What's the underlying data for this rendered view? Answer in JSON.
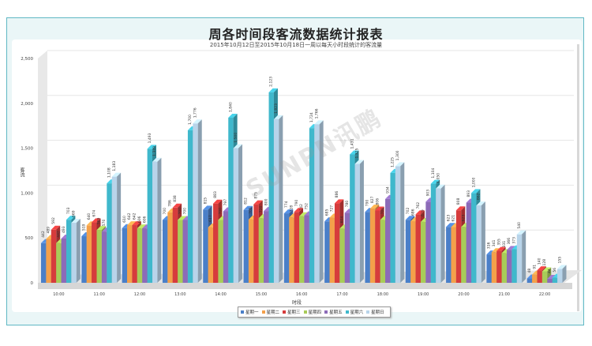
{
  "header": {
    "title": "周各时间段客流数据统计报表",
    "subtitle": "2015年10月12日至2015年10月18日一周以每天小时段统计的客流量"
  },
  "watermark": "SUNPN讯鹏",
  "colors": {
    "frame_border": "#5fb8c4",
    "frame_bg": "#eaf6f7",
    "series": [
      "#4a7fc8",
      "#f4a04a",
      "#d63c3c",
      "#a8cc58",
      "#8c6bb8",
      "#3fb8cc",
      "#b8d4ea"
    ]
  },
  "chart_data": {
    "type": "bar",
    "title": "周各时间段客流数据统计报表",
    "subtitle": "2015年10月12日至2015年10月18日一周以每天小时段统计的客流量",
    "xlabel": "时段",
    "ylabel": "客流",
    "ylim": [
      0,
      2500
    ],
    "yticks": [
      "0",
      "500",
      "1,000",
      "1,500",
      "2,000",
      "2,500"
    ],
    "grid": true,
    "legend_position": "bottom",
    "style": "3d-clustered",
    "categories": [
      "10:00",
      "11:00",
      "12:00",
      "13:00",
      "14:00",
      "15:00",
      "16:00",
      "17:00",
      "18:00",
      "19:00",
      "20:00",
      "21:00",
      "22:00"
    ],
    "series": [
      {
        "name": "星期一",
        "values": [
          442,
          519,
          610,
          700,
          815,
          812,
          774,
          685,
          790,
          702,
          623,
          316,
          48
        ]
      },
      {
        "name": "星期二",
        "values": [
          489,
          640,
          642,
          786,
          617,
          705,
          728,
          727,
          827,
          686,
          621,
          341,
          91
        ]
      },
      {
        "name": "星期三",
        "values": [
          592,
          674,
          642,
          838,
          883,
          875,
          790,
          886,
          806,
          762,
          808,
          355,
          140
        ]
      },
      {
        "name": "星期四",
        "values": [
          442,
          589,
          606,
          700,
          700,
          720,
          742,
          604,
          701,
          679,
          623,
          331,
          128
        ]
      },
      {
        "name": "星期五",
        "values": [
          493,
          570,
          606,
          700,
          797,
          800,
          752,
          780,
          934,
          903,
          893,
          366,
          44
        ]
      },
      {
        "name": "星期六",
        "values": [
          703,
          1108,
          1493,
          1700,
          1840,
          2123,
          1724,
          1431,
          1225,
          1104,
          1000,
          373,
          56
        ]
      },
      {
        "name": "星期日",
        "values": [
          669,
          1183,
          1349,
          1776,
          1500,
          1823,
          1766,
          1325,
          1300,
          1050,
          862,
          540,
          155
        ]
      }
    ]
  }
}
